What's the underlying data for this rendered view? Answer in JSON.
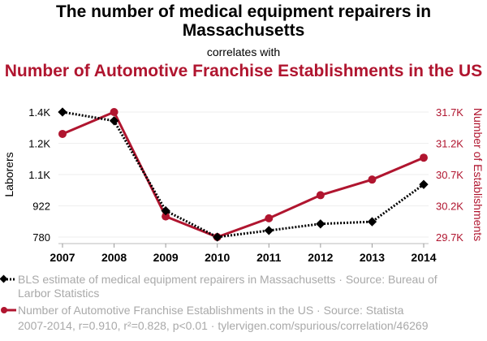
{
  "header": {
    "title": "The number of medical equipment repairers in Massachusetts",
    "correlates": "correlates with",
    "title2": "Number of Automotive Franchise Establishments in the US"
  },
  "legend": {
    "series1": "BLS estimate of medical equipment repairers in Massachusetts · Source: Bureau of Larbor Statistics",
    "series2": "Number of Automotive Franchise Establishments in the US · Source: Statista"
  },
  "footer": "2007-2014, r=0.910, r²=0.828, p<0.01 · tylervigen.com/spurious/correlation/46269",
  "colors": {
    "series1": "#000000",
    "series2": "#b0152f",
    "grid": "#eeeeee"
  },
  "chart_data": {
    "type": "line",
    "x": [
      "2007",
      "2008",
      "2009",
      "2010",
      "2011",
      "2012",
      "2013",
      "2014"
    ],
    "series": [
      {
        "name": "BLS estimate of medical equipment repairers in Massachusetts",
        "axis": "left",
        "style": "dotted-diamond",
        "values": [
          1350,
          1310,
          900,
          780,
          810,
          840,
          850,
          1020
        ]
      },
      {
        "name": "Number of Automotive Franchise Establishments in the US",
        "axis": "right",
        "style": "solid-circle",
        "values": [
          31350,
          31700,
          30030,
          29700,
          30000,
          30370,
          30620,
          30970
        ]
      }
    ],
    "ylabel": "Laborers",
    "y2label": "Number of Establishments",
    "yticks": [
      {
        "v": 780,
        "label": "780"
      },
      {
        "v": 922,
        "label": "922"
      },
      {
        "v": 1065,
        "label": "1.1K"
      },
      {
        "v": 1207,
        "label": "1.2K"
      },
      {
        "v": 1350,
        "label": "1.4K"
      }
    ],
    "y2ticks": [
      {
        "v": 29700,
        "label": "29.7K"
      },
      {
        "v": 30200,
        "label": "30.2K"
      },
      {
        "v": 30700,
        "label": "30.7K"
      },
      {
        "v": 31200,
        "label": "31.2K"
      },
      {
        "v": 31700,
        "label": "31.7K"
      }
    ],
    "ylim": [
      780,
      1350
    ],
    "y2lim": [
      29700,
      31700
    ],
    "grid": true
  }
}
